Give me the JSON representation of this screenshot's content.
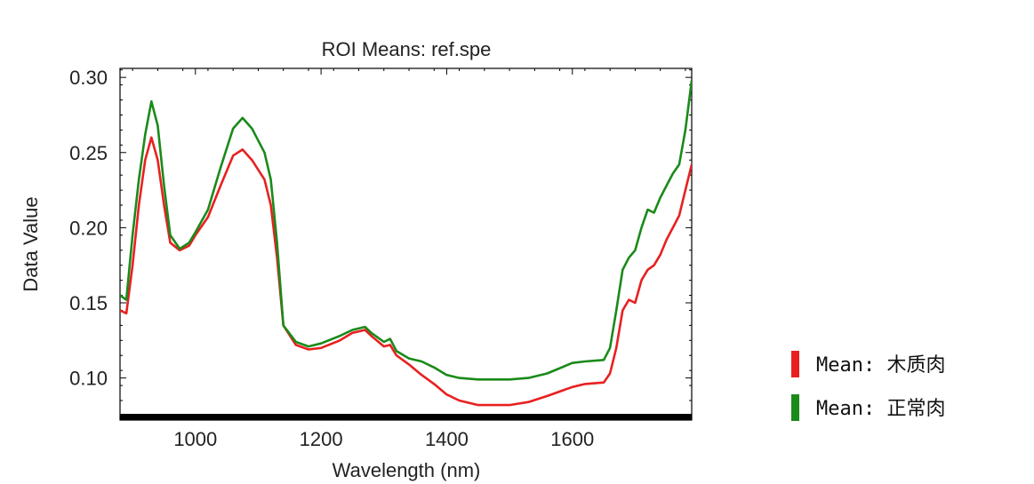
{
  "chart_data": {
    "type": "line",
    "title": "ROI Means: ref.spe",
    "xlabel": "Wavelength (nm)",
    "ylabel": "Data Value",
    "xlim": [
      880,
      1790
    ],
    "ylim": [
      0.072,
      0.306
    ],
    "xticks": [
      1000,
      1200,
      1400,
      1600
    ],
    "xtick_labels": [
      "1000",
      "1200",
      "1400",
      "1600"
    ],
    "yticks": [
      0.1,
      0.15,
      0.2,
      0.25,
      0.3
    ],
    "ytick_labels": [
      "0.10",
      "0.15",
      "0.20",
      "0.25",
      "0.30"
    ],
    "legend_position": "right",
    "series": [
      {
        "name": "Mean: 木质肉",
        "color": "#e82020",
        "points": [
          [
            880,
            0.145
          ],
          [
            890,
            0.143
          ],
          [
            900,
            0.175
          ],
          [
            910,
            0.215
          ],
          [
            920,
            0.245
          ],
          [
            930,
            0.26
          ],
          [
            940,
            0.245
          ],
          [
            950,
            0.215
          ],
          [
            960,
            0.19
          ],
          [
            975,
            0.185
          ],
          [
            990,
            0.188
          ],
          [
            1000,
            0.195
          ],
          [
            1020,
            0.207
          ],
          [
            1040,
            0.228
          ],
          [
            1060,
            0.248
          ],
          [
            1075,
            0.252
          ],
          [
            1090,
            0.245
          ],
          [
            1110,
            0.232
          ],
          [
            1120,
            0.215
          ],
          [
            1130,
            0.18
          ],
          [
            1140,
            0.135
          ],
          [
            1160,
            0.122
          ],
          [
            1180,
            0.119
          ],
          [
            1200,
            0.12
          ],
          [
            1230,
            0.125
          ],
          [
            1250,
            0.13
          ],
          [
            1270,
            0.132
          ],
          [
            1280,
            0.128
          ],
          [
            1300,
            0.121
          ],
          [
            1310,
            0.122
          ],
          [
            1320,
            0.115
          ],
          [
            1340,
            0.109
          ],
          [
            1360,
            0.102
          ],
          [
            1380,
            0.096
          ],
          [
            1400,
            0.089
          ],
          [
            1420,
            0.085
          ],
          [
            1450,
            0.082
          ],
          [
            1500,
            0.082
          ],
          [
            1530,
            0.084
          ],
          [
            1560,
            0.088
          ],
          [
            1600,
            0.094
          ],
          [
            1620,
            0.096
          ],
          [
            1650,
            0.097
          ],
          [
            1660,
            0.103
          ],
          [
            1670,
            0.12
          ],
          [
            1680,
            0.145
          ],
          [
            1690,
            0.152
          ],
          [
            1700,
            0.15
          ],
          [
            1710,
            0.165
          ],
          [
            1720,
            0.172
          ],
          [
            1730,
            0.175
          ],
          [
            1740,
            0.182
          ],
          [
            1750,
            0.192
          ],
          [
            1760,
            0.2
          ],
          [
            1770,
            0.208
          ],
          [
            1780,
            0.225
          ],
          [
            1790,
            0.242
          ]
        ]
      },
      {
        "name": "Mean: 正常肉",
        "color": "#1a8a1a",
        "points": [
          [
            880,
            0.155
          ],
          [
            890,
            0.152
          ],
          [
            900,
            0.195
          ],
          [
            910,
            0.232
          ],
          [
            920,
            0.262
          ],
          [
            930,
            0.284
          ],
          [
            940,
            0.268
          ],
          [
            950,
            0.228
          ],
          [
            960,
            0.195
          ],
          [
            975,
            0.186
          ],
          [
            990,
            0.19
          ],
          [
            1000,
            0.197
          ],
          [
            1020,
            0.212
          ],
          [
            1040,
            0.24
          ],
          [
            1060,
            0.266
          ],
          [
            1075,
            0.273
          ],
          [
            1090,
            0.266
          ],
          [
            1110,
            0.25
          ],
          [
            1120,
            0.232
          ],
          [
            1130,
            0.19
          ],
          [
            1140,
            0.135
          ],
          [
            1160,
            0.124
          ],
          [
            1180,
            0.121
          ],
          [
            1200,
            0.123
          ],
          [
            1230,
            0.128
          ],
          [
            1250,
            0.132
          ],
          [
            1270,
            0.134
          ],
          [
            1280,
            0.13
          ],
          [
            1300,
            0.124
          ],
          [
            1310,
            0.126
          ],
          [
            1320,
            0.118
          ],
          [
            1340,
            0.113
          ],
          [
            1360,
            0.111
          ],
          [
            1380,
            0.107
          ],
          [
            1400,
            0.102
          ],
          [
            1420,
            0.1
          ],
          [
            1450,
            0.099
          ],
          [
            1500,
            0.099
          ],
          [
            1530,
            0.1
          ],
          [
            1560,
            0.103
          ],
          [
            1600,
            0.11
          ],
          [
            1620,
            0.111
          ],
          [
            1650,
            0.112
          ],
          [
            1660,
            0.12
          ],
          [
            1670,
            0.145
          ],
          [
            1680,
            0.172
          ],
          [
            1690,
            0.18
          ],
          [
            1700,
            0.185
          ],
          [
            1710,
            0.2
          ],
          [
            1720,
            0.212
          ],
          [
            1730,
            0.21
          ],
          [
            1740,
            0.22
          ],
          [
            1750,
            0.228
          ],
          [
            1760,
            0.236
          ],
          [
            1770,
            0.242
          ],
          [
            1780,
            0.265
          ],
          [
            1790,
            0.298
          ]
        ]
      }
    ]
  }
}
